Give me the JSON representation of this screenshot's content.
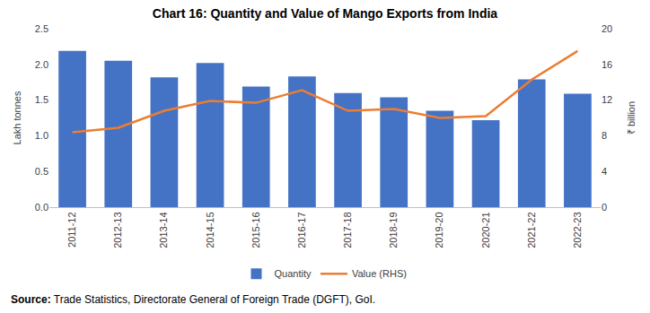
{
  "chart_data": {
    "type": "bar",
    "title": "Chart 16: Quantity and Value of Mango Exports from India",
    "y_label": "Lakh tonnes",
    "y2_label": "₹ billion",
    "source": {
      "label": "Source:",
      "text": "Trade Statistics, Directorate General of Foreign Trade (DGFT), GoI."
    },
    "categories": [
      "2011-12",
      "2012-13",
      "2013-14",
      "2014-15",
      "2015-16",
      "2016-17",
      "2017-18",
      "2018-19",
      "2019-20",
      "2020-21",
      "2021-22",
      "2022-23"
    ],
    "series": [
      {
        "name": "Quantity",
        "type": "bar",
        "color": "#4472c4",
        "values": [
          2.19,
          2.05,
          1.82,
          2.02,
          1.69,
          1.83,
          1.6,
          1.54,
          1.35,
          1.22,
          1.79,
          1.59
        ]
      },
      {
        "name": "Value (RHS)",
        "type": "line",
        "axis": "y2",
        "color": "#ed7d31",
        "values": [
          8.4,
          8.9,
          10.8,
          11.9,
          11.7,
          13.1,
          10.8,
          11.0,
          10.0,
          10.2,
          14.3,
          17.5
        ]
      }
    ],
    "ylim": [
      0,
      2.5
    ],
    "yticks": [
      {
        "value": 0,
        "label": "0.0"
      },
      {
        "value": 0.5,
        "label": "0.5"
      },
      {
        "value": 1,
        "label": "1.0"
      },
      {
        "value": 1.5,
        "label": "1.5"
      },
      {
        "value": 2,
        "label": "2.0"
      },
      {
        "value": 2.5,
        "label": "2.5"
      }
    ],
    "y2lim": [
      0,
      20
    ],
    "y2ticks": [
      0,
      4,
      8,
      12,
      16,
      20
    ],
    "grid": false,
    "legend": "bottom",
    "data_labels": false
  }
}
